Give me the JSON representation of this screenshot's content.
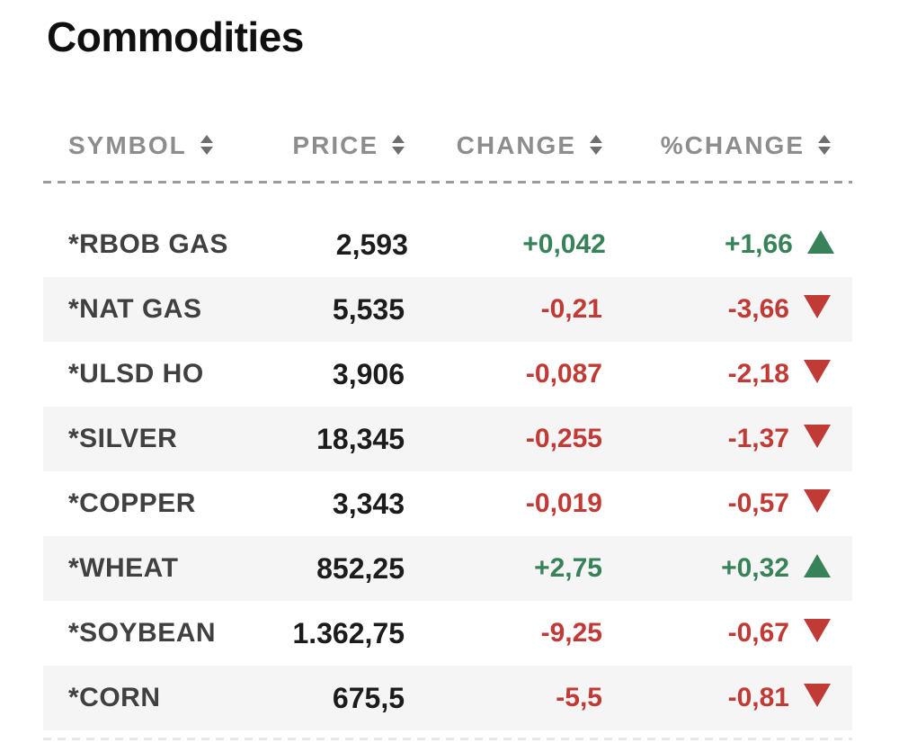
{
  "title": "Commodities",
  "colors": {
    "up": "#38825A",
    "down": "#C03B36"
  },
  "table": {
    "columns": [
      {
        "key": "symbol",
        "label": "SYMBOL"
      },
      {
        "key": "price",
        "label": "PRICE"
      },
      {
        "key": "change",
        "label": "CHANGE"
      },
      {
        "key": "pct_change",
        "label": "%CHANGE"
      }
    ],
    "rows": [
      {
        "symbol": "*RBOB GAS",
        "price": "2,593",
        "change": "+0,042",
        "pct_change": "+1,66",
        "direction": "up"
      },
      {
        "symbol": "*NAT GAS",
        "price": "5,535",
        "change": "-0,21",
        "pct_change": "-3,66",
        "direction": "down"
      },
      {
        "symbol": "*ULSD HO",
        "price": "3,906",
        "change": "-0,087",
        "pct_change": "-2,18",
        "direction": "down"
      },
      {
        "symbol": "*SILVER",
        "price": "18,345",
        "change": "-0,255",
        "pct_change": "-1,37",
        "direction": "down"
      },
      {
        "symbol": "*COPPER",
        "price": "3,343",
        "change": "-0,019",
        "pct_change": "-0,57",
        "direction": "down"
      },
      {
        "symbol": "*WHEAT",
        "price": "852,25",
        "change": "+2,75",
        "pct_change": "+0,32",
        "direction": "up"
      },
      {
        "symbol": "*SOYBEAN",
        "price": "1.362,75",
        "change": "-9,25",
        "pct_change": "-0,67",
        "direction": "down"
      },
      {
        "symbol": "*CORN",
        "price": "675,5",
        "change": "-5,5",
        "pct_change": "-0,81",
        "direction": "down"
      }
    ]
  }
}
